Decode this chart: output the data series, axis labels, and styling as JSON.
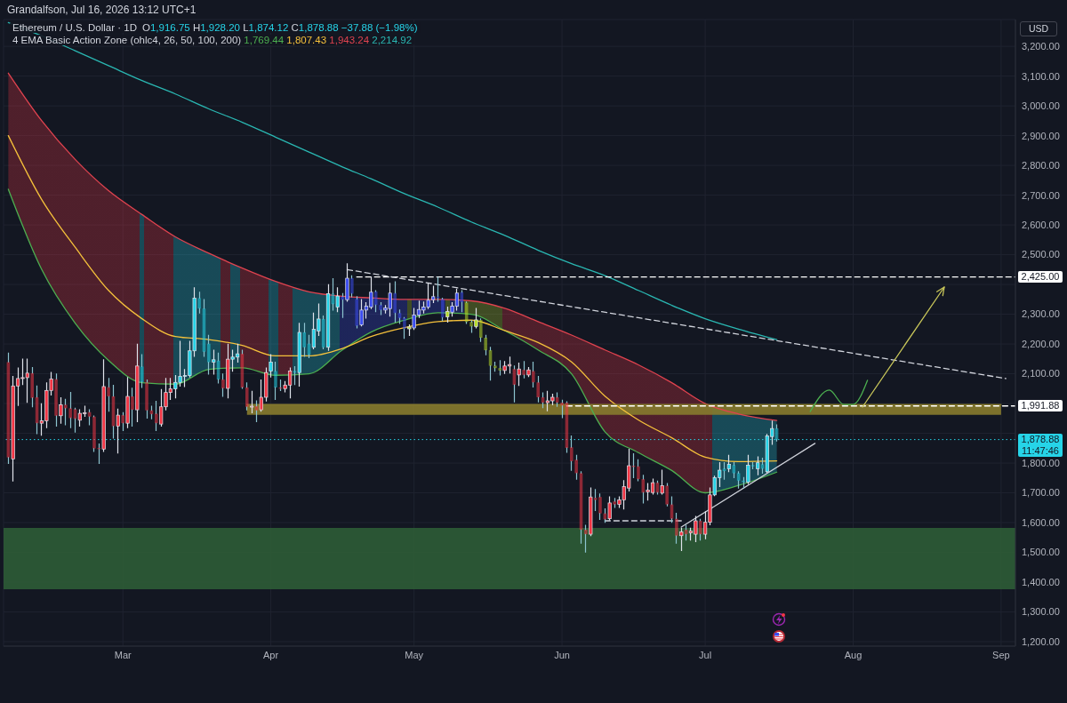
{
  "chart_data": {
    "type": "candlestick",
    "title": "Ethereum / U.S. Dollar · 1D",
    "subtitle": "Grandalfson, Jul 16, 2026 13:12 UTC+1",
    "ylabel": "USD",
    "x": [
      "2026-02-05",
      "2026-02-06",
      "2026-02-07",
      "2026-02-08",
      "2026-02-09",
      "2026-02-10",
      "2026-02-11",
      "2026-02-12",
      "2026-02-13",
      "2026-02-14",
      "2026-02-15",
      "2026-02-16",
      "2026-02-17",
      "2026-02-18",
      "2026-02-19",
      "2026-02-20",
      "2026-02-21",
      "2026-02-22",
      "2026-02-23",
      "2026-02-24",
      "2026-02-25",
      "2026-02-26",
      "2026-02-27",
      "2026-02-28",
      "2026-03-01",
      "2026-03-02",
      "2026-03-03",
      "2026-03-04",
      "2026-03-05",
      "2026-03-06",
      "2026-03-07",
      "2026-03-08",
      "2026-03-09",
      "2026-03-10",
      "2026-03-11",
      "2026-03-12",
      "2026-03-13",
      "2026-03-14",
      "2026-03-15",
      "2026-03-16",
      "2026-03-17",
      "2026-03-18",
      "2026-03-19",
      "2026-03-20",
      "2026-03-21",
      "2026-03-22",
      "2026-03-23",
      "2026-03-24",
      "2026-03-25",
      "2026-03-26",
      "2026-03-27",
      "2026-03-28",
      "2026-03-29",
      "2026-03-30",
      "2026-03-31",
      "2026-04-01",
      "2026-04-02",
      "2026-04-03",
      "2026-04-04",
      "2026-04-05",
      "2026-04-06",
      "2026-04-07",
      "2026-04-08",
      "2026-04-09",
      "2026-04-10",
      "2026-04-11",
      "2026-04-12",
      "2026-04-13",
      "2026-04-14",
      "2026-04-15",
      "2026-04-16",
      "2026-04-17",
      "2026-04-18",
      "2026-04-19",
      "2026-04-20",
      "2026-04-21",
      "2026-04-22",
      "2026-04-23",
      "2026-04-24",
      "2026-04-25",
      "2026-04-26",
      "2026-04-27",
      "2026-04-28",
      "2026-04-29",
      "2026-04-30",
      "2026-05-01",
      "2026-05-02",
      "2026-05-03",
      "2026-05-04",
      "2026-05-05",
      "2026-05-06",
      "2026-05-07",
      "2026-05-08",
      "2026-05-09",
      "2026-05-10",
      "2026-05-11",
      "2026-05-12",
      "2026-05-13",
      "2026-05-14",
      "2026-05-15",
      "2026-05-16",
      "2026-05-17",
      "2026-05-18",
      "2026-05-19",
      "2026-05-20",
      "2026-05-21",
      "2026-05-22",
      "2026-05-23",
      "2026-05-24",
      "2026-05-25",
      "2026-05-26",
      "2026-05-27",
      "2026-05-28",
      "2026-05-29",
      "2026-05-30",
      "2026-05-31",
      "2026-06-01",
      "2026-06-02",
      "2026-06-03",
      "2026-06-04",
      "2026-06-05",
      "2026-06-06",
      "2026-06-07",
      "2026-06-08",
      "2026-06-09",
      "2026-06-10",
      "2026-06-11",
      "2026-06-12",
      "2026-06-13",
      "2026-06-14",
      "2026-06-15",
      "2026-06-16",
      "2026-06-17",
      "2026-06-18",
      "2026-06-19",
      "2026-06-20",
      "2026-06-21",
      "2026-06-22",
      "2026-06-23",
      "2026-06-24",
      "2026-06-25",
      "2026-06-26",
      "2026-06-27",
      "2026-06-28",
      "2026-06-29",
      "2026-06-30",
      "2026-07-01",
      "2026-07-02",
      "2026-07-03",
      "2026-07-04",
      "2026-07-05",
      "2026-07-06",
      "2026-07-07",
      "2026-07-08",
      "2026-07-09",
      "2026-07-10",
      "2026-07-11",
      "2026-07-12",
      "2026-07-13",
      "2026-07-14",
      "2026-07-15",
      "2026-07-16"
    ],
    "ohlc": [
      [
        2139,
        2169,
        1799,
        1819
      ],
      [
        1814,
        2091,
        1740,
        2059
      ],
      [
        2059,
        2119,
        1994,
        2084
      ],
      [
        2084,
        2149,
        2064,
        2087
      ],
      [
        2087,
        2149,
        2004,
        2102
      ],
      [
        2102,
        2121,
        1989,
        2019
      ],
      [
        2021,
        2059,
        1899,
        1934
      ],
      [
        1934,
        1999,
        1894,
        1942
      ],
      [
        1942,
        2069,
        1919,
        2044
      ],
      [
        2044,
        2104,
        2029,
        2082
      ],
      [
        2082,
        2099,
        1924,
        1959
      ],
      [
        1959,
        2019,
        1934,
        1996
      ],
      [
        1996,
        2014,
        1929,
        1984
      ],
      [
        1984,
        2037,
        1919,
        1951
      ],
      [
        1981,
        1984,
        1904,
        1949
      ],
      [
        1944,
        1979,
        1924,
        1967
      ],
      [
        1966,
        1991,
        1957,
        1969
      ],
      [
        1971,
        1979,
        1929,
        1956
      ],
      [
        1956,
        1958,
        1839,
        1849
      ],
      [
        1851,
        1864,
        1799,
        1847
      ],
      [
        1847,
        2147,
        1839,
        2057
      ],
      [
        2055,
        2084,
        1974,
        2024
      ],
      [
        2024,
        2061,
        1884,
        1924
      ],
      [
        1924,
        1981,
        1834,
        1961
      ],
      [
        1961,
        1969,
        1909,
        1934
      ],
      [
        1934,
        2087,
        1919,
        2024
      ],
      [
        2024,
        2051,
        1924,
        1979
      ],
      [
        1979,
        2199,
        1939,
        2126
      ],
      [
        2124,
        2164,
        2054,
        2072
      ],
      [
        2071,
        2079,
        1951,
        1977
      ],
      [
        1977,
        1991,
        1949,
        1964
      ],
      [
        1966,
        2007,
        1909,
        1934
      ],
      [
        1931,
        2047,
        1924,
        1989
      ],
      [
        1989,
        2084,
        1979,
        2037
      ],
      [
        2037,
        2084,
        2014,
        2049
      ],
      [
        2049,
        2094,
        2019,
        2071
      ],
      [
        2071,
        2209,
        2059,
        2091
      ],
      [
        2091,
        2114,
        2057,
        2094
      ],
      [
        2094,
        2209,
        2089,
        2177
      ],
      [
        2177,
        2389,
        2159,
        2354
      ],
      [
        2354,
        2374,
        2304,
        2319
      ],
      [
        2319,
        2349,
        2159,
        2174
      ],
      [
        2201,
        2229,
        2099,
        2139
      ],
      [
        2139,
        2179,
        2099,
        2147
      ],
      [
        2144,
        2169,
        2069,
        2081
      ],
      [
        2081,
        2099,
        2024,
        2051
      ],
      [
        2051,
        2199,
        2019,
        2149
      ],
      [
        2149,
        2179,
        2109,
        2156
      ],
      [
        2156,
        2199,
        2139,
        2167
      ],
      [
        2167,
        2179,
        2051,
        2054
      ],
      [
        2054,
        2069,
        1979,
        1989
      ],
      [
        1989,
        2041,
        1969,
        1991
      ],
      [
        1991,
        2009,
        1939,
        1977
      ],
      [
        1979,
        2079,
        1974,
        2021
      ],
      [
        2021,
        2119,
        2009,
        2104
      ],
      [
        2109,
        2164,
        2089,
        2139
      ],
      [
        2109,
        2139,
        2014,
        2054
      ],
      [
        2054,
        2079,
        2044,
        2050
      ],
      [
        2050,
        2074,
        2039,
        2062
      ],
      [
        2062,
        2119,
        2019,
        2109
      ],
      [
        2109,
        2124,
        2064,
        2104
      ],
      [
        2104,
        2269,
        2059,
        2239
      ],
      [
        2239,
        2269,
        2159,
        2189
      ],
      [
        2201,
        2229,
        2154,
        2164
      ],
      [
        2189,
        2304,
        2184,
        2249
      ],
      [
        2244,
        2334,
        2229,
        2284
      ],
      [
        2284,
        2294,
        2184,
        2189
      ],
      [
        2189,
        2399,
        2179,
        2369
      ],
      [
        2369,
        2419,
        2314,
        2334
      ],
      [
        2324,
        2389,
        2309,
        2361
      ],
      [
        2359,
        2369,
        2289,
        2349
      ],
      [
        2349,
        2469,
        2344,
        2421
      ],
      [
        2421,
        2429,
        2359,
        2369
      ],
      [
        2351,
        2359,
        2254,
        2261
      ],
      [
        2264,
        2349,
        2261,
        2314
      ],
      [
        2314,
        2339,
        2287,
        2327
      ],
      [
        2324,
        2424,
        2319,
        2374
      ],
      [
        2376,
        2379,
        2309,
        2331
      ],
      [
        2331,
        2339,
        2299,
        2314
      ],
      [
        2314,
        2329,
        2304,
        2321
      ],
      [
        2319,
        2404,
        2294,
        2371
      ],
      [
        2371,
        2409,
        2274,
        2304
      ],
      [
        2304,
        2314,
        2269,
        2287
      ],
      [
        2287,
        2289,
        2219,
        2251
      ],
      [
        2251,
        2264,
        2229,
        2257
      ],
      [
        2254,
        2319,
        2249,
        2297
      ],
      [
        2297,
        2344,
        2289,
        2316
      ],
      [
        2314,
        2341,
        2304,
        2324
      ],
      [
        2324,
        2404,
        2319,
        2347
      ],
      [
        2349,
        2394,
        2339,
        2359
      ],
      [
        2359,
        2424,
        2344,
        2354
      ],
      [
        2351,
        2354,
        2279,
        2289
      ],
      [
        2291,
        2324,
        2274,
        2309
      ],
      [
        2307,
        2339,
        2294,
        2327
      ],
      [
        2327,
        2384,
        2314,
        2371
      ],
      [
        2374,
        2379,
        2309,
        2341
      ],
      [
        2339,
        2341,
        2269,
        2274
      ],
      [
        2274,
        2279,
        2239,
        2259
      ],
      [
        2259,
        2319,
        2254,
        2281
      ],
      [
        2281,
        2284,
        2209,
        2221
      ],
      [
        2221,
        2229,
        2164,
        2179
      ],
      [
        2179,
        2189,
        2079,
        2127
      ],
      [
        2127,
        2139,
        2109,
        2119
      ],
      [
        2119,
        2144,
        2096,
        2111
      ],
      [
        2111,
        2141,
        2101,
        2126
      ],
      [
        2126,
        2156,
        2103,
        2131
      ],
      [
        2116,
        2126,
        2006,
        2063
      ],
      [
        2096,
        2136,
        2061,
        2116
      ],
      [
        2113,
        2141,
        2086,
        2096
      ],
      [
        2096,
        2121,
        2091,
        2113
      ],
      [
        2109,
        2139,
        2056,
        2071
      ],
      [
        2071,
        2091,
        2006,
        2021
      ],
      [
        2021,
        2036,
        1986,
        2003
      ],
      [
        2003,
        2041,
        1976,
        2009
      ],
      [
        2009,
        2031,
        1996,
        2021
      ],
      [
        2021,
        2036,
        1991,
        2003
      ],
      [
        2003,
        2011,
        1953,
        1993
      ],
      [
        2003,
        2006,
        1836,
        1851
      ],
      [
        1853,
        1891,
        1776,
        1806
      ],
      [
        1811,
        1826,
        1746,
        1766
      ],
      [
        1766,
        1771,
        1531,
        1576
      ],
      [
        1576,
        1591,
        1501,
        1561
      ],
      [
        1561,
        1716,
        1556,
        1686
      ],
      [
        1683,
        1711,
        1641,
        1676
      ],
      [
        1686,
        1696,
        1611,
        1631
      ],
      [
        1631,
        1646,
        1601,
        1611
      ],
      [
        1613,
        1686,
        1609,
        1666
      ],
      [
        1671,
        1681,
        1651,
        1661
      ],
      [
        1661,
        1686,
        1651,
        1676
      ],
      [
        1676,
        1741,
        1646,
        1721
      ],
      [
        1716,
        1846,
        1706,
        1791
      ],
      [
        1791,
        1831,
        1751,
        1787
      ],
      [
        1789,
        1811,
        1741,
        1746
      ],
      [
        1746,
        1759,
        1666,
        1701
      ],
      [
        1703,
        1731,
        1676,
        1709
      ],
      [
        1701,
        1746,
        1696,
        1734
      ],
      [
        1734,
        1739,
        1696,
        1701
      ],
      [
        1699,
        1776,
        1696,
        1724
      ],
      [
        1724,
        1731,
        1656,
        1661
      ],
      [
        1661,
        1686,
        1601,
        1613
      ],
      [
        1613,
        1631,
        1531,
        1556
      ],
      [
        1556,
        1581,
        1506,
        1569
      ],
      [
        1576,
        1591,
        1541,
        1561
      ],
      [
        1566,
        1581,
        1541,
        1571
      ],
      [
        1561,
        1621,
        1536,
        1606
      ],
      [
        1606,
        1611,
        1541,
        1561
      ],
      [
        1561,
        1636,
        1546,
        1601
      ],
      [
        1601,
        1716,
        1593,
        1693
      ],
      [
        1693,
        1756,
        1691,
        1751
      ],
      [
        1751,
        1801,
        1721,
        1776
      ],
      [
        1781,
        1801,
        1746,
        1773
      ],
      [
        1781,
        1826,
        1771,
        1796
      ],
      [
        1793,
        1801,
        1751,
        1766
      ],
      [
        1766,
        1771,
        1716,
        1741
      ],
      [
        1741,
        1751,
        1716,
        1736
      ],
      [
        1736,
        1826,
        1731,
        1793
      ],
      [
        1793,
        1801,
        1781,
        1789
      ],
      [
        1781,
        1821,
        1761,
        1801
      ],
      [
        1796,
        1816,
        1766,
        1781
      ],
      [
        1771,
        1896,
        1769,
        1891
      ],
      [
        1889,
        1941,
        1863,
        1916
      ],
      [
        1916.75,
        1928.2,
        1874.12,
        1878.88
      ]
    ],
    "colors": [
      "#f23645",
      "#f23645",
      "#f23645",
      "#f23645",
      "#f23645",
      "#f23645",
      "#f23645",
      "#f23645",
      "#f23645",
      "#f23645",
      "#f23645",
      "#f23645",
      "#f23645",
      "#f23645",
      "#f23645",
      "#f23645",
      "#f23645",
      "#f23645",
      "#f23645",
      "#f23645",
      "#f23645",
      "#f23645",
      "#f23645",
      "#f23645",
      "#f23645",
      "#f23645",
      "#f23645",
      "#f23645",
      "#26d4e8",
      "#f23645",
      "#f23645",
      "#f23645",
      "#f23645",
      "#f23645",
      "#f23645",
      "#26d4e8",
      "#26d4e8",
      "#26d4e8",
      "#26d4e8",
      "#26d4e8",
      "#26d4e8",
      "#26d4e8",
      "#26d4e8",
      "#26d4e8",
      "#26d4e8",
      "#f23645",
      "#f23645",
      "#26d4e8",
      "#26d4e8",
      "#f23645",
      "#f23645",
      "#f23645",
      "#f23645",
      "#f23645",
      "#f23645",
      "#26d4e8",
      "#26d4e8",
      "#f23645",
      "#f23645",
      "#f23645",
      "#26d4e8",
      "#26d4e8",
      "#26d4e8",
      "#26d4e8",
      "#26d4e8",
      "#26d4e8",
      "#26d4e8",
      "#26d4e8",
      "#26d4e8",
      "#26d4e8",
      "#3b4cf0",
      "#3b4cf0",
      "#3b4cf0",
      "#3b4cf0",
      "#3b4cf0",
      "#3b4cf0",
      "#3b4cf0",
      "#3b4cf0",
      "#3b4cf0",
      "#3b4cf0",
      "#3b4cf0",
      "#3b4cf0",
      "#3b4cf0",
      "#3b4cf0",
      "#b8dc2a",
      "#3b4cf0",
      "#3b4cf0",
      "#3b4cf0",
      "#3b4cf0",
      "#3b4cf0",
      "#3b4cf0",
      "#3b4cf0",
      "#b8dc2a",
      "#3b4cf0",
      "#3b4cf0",
      "#3b4cf0",
      "#b8dc2a",
      "#b8dc2a",
      "#b8dc2a",
      "#b8dc2a",
      "#b8dc2a",
      "#b8dc2a",
      "#b8dc2a",
      "#b8dc2a",
      "#f23645",
      "#f23645",
      "#f23645",
      "#f23645",
      "#f23645",
      "#f23645",
      "#f23645",
      "#f23645",
      "#f23645",
      "#f23645",
      "#f23645",
      "#f23645",
      "#f23645",
      "#f23645",
      "#f23645",
      "#f23645",
      "#f23645",
      "#f23645",
      "#f23645",
      "#f23645",
      "#f23645",
      "#f23645",
      "#f23645",
      "#f23645",
      "#f23645",
      "#f23645",
      "#f23645",
      "#f23645",
      "#f23645",
      "#f23645",
      "#f23645",
      "#f23645",
      "#f23645",
      "#f23645",
      "#f23645",
      "#f23645",
      "#f23645",
      "#f23645",
      "#f23645",
      "#f23645",
      "#f23645",
      "#f23645",
      "#f23645",
      "#f23645",
      "#26d4e8",
      "#26d4e8",
      "#26d4e8",
      "#26d4e8",
      "#26d4e8",
      "#26d4e8",
      "#26d4e8",
      "#26d4e8",
      "#26d4e8",
      "#26d4e8",
      "#26d4e8",
      "#26d4e8",
      "#26d4e8",
      "#26d4e8"
    ],
    "series": [
      {
        "type": "line",
        "color": "#4caf50",
        "x": [
          "2026-02-05",
          "2026-02-12",
          "2026-02-19",
          "2026-02-26",
          "2026-03-05",
          "2026-03-12",
          "2026-03-19",
          "2026-03-26",
          "2026-04-02",
          "2026-04-09",
          "2026-04-16",
          "2026-04-22",
          "2026-04-29",
          "2026-05-06",
          "2026-05-13",
          "2026-05-20",
          "2026-05-27",
          "2026-06-03",
          "2026-06-10",
          "2026-06-17",
          "2026-06-24",
          "2026-07-01",
          "2026-07-08",
          "2026-07-16"
        ],
        "values": [
          2720,
          2450,
          2270,
          2145,
          2070,
          2065,
          2115,
          2120,
          2095,
          2100,
          2180,
          2240,
          2280,
          2305,
          2300,
          2245,
          2180,
          2100,
          1905,
          1835,
          1775,
          1700,
          1725,
          1769.44
        ]
      },
      {
        "type": "line",
        "color": "#f5c13b",
        "x": [
          "2026-02-05",
          "2026-02-12",
          "2026-02-19",
          "2026-02-26",
          "2026-03-05",
          "2026-03-12",
          "2026-03-19",
          "2026-03-26",
          "2026-04-02",
          "2026-04-09",
          "2026-04-16",
          "2026-04-22",
          "2026-04-29",
          "2026-05-06",
          "2026-05-13",
          "2026-05-20",
          "2026-05-27",
          "2026-06-03",
          "2026-06-10",
          "2026-06-17",
          "2026-06-24",
          "2026-07-01",
          "2026-07-08",
          "2026-07-16"
        ],
        "values": [
          2900,
          2685,
          2525,
          2380,
          2285,
          2225,
          2215,
          2195,
          2160,
          2160,
          2185,
          2225,
          2255,
          2275,
          2280,
          2245,
          2205,
          2140,
          2025,
          1945,
          1885,
          1820,
          1805,
          1807.43
        ]
      },
      {
        "type": "line",
        "color": "#e0434f",
        "x": [
          "2026-02-05",
          "2026-02-12",
          "2026-02-19",
          "2026-02-26",
          "2026-03-05",
          "2026-03-12",
          "2026-03-19",
          "2026-03-26",
          "2026-04-02",
          "2026-04-09",
          "2026-04-16",
          "2026-04-22",
          "2026-04-29",
          "2026-05-06",
          "2026-05-13",
          "2026-05-20",
          "2026-05-27",
          "2026-06-03",
          "2026-06-10",
          "2026-06-17",
          "2026-06-24",
          "2026-07-01",
          "2026-07-08",
          "2026-07-16"
        ],
        "values": [
          3110,
          2950,
          2820,
          2715,
          2635,
          2560,
          2505,
          2455,
          2410,
          2375,
          2360,
          2355,
          2350,
          2350,
          2345,
          2320,
          2275,
          2230,
          2180,
          2130,
          2070,
          2000,
          1965,
          1943.24
        ],
        "lower": [
          2720,
          2450,
          2270,
          2145,
          2070,
          2065,
          2115,
          2120,
          2095,
          2100,
          2180,
          2240,
          2280,
          2305,
          2300,
          2245,
          2180,
          2100,
          1905,
          1835,
          1775,
          1700,
          1725,
          1769.44
        ],
        "upper": [
          3110,
          2950,
          2820,
          2715,
          2635,
          2560,
          2505,
          2455,
          2410,
          2375,
          2360,
          2355,
          2350,
          2350,
          2345,
          2320,
          2275,
          2230,
          2180,
          2130,
          2070,
          2000,
          1965,
          1943.24
        ]
      },
      {
        "type": "line",
        "color": "#2ab7b2",
        "x": [
          "2026-02-05",
          "2026-02-12",
          "2026-02-19",
          "2026-02-26",
          "2026-03-05",
          "2026-03-12",
          "2026-03-19",
          "2026-03-26",
          "2026-04-02",
          "2026-04-09",
          "2026-04-16",
          "2026-04-22",
          "2026-04-29",
          "2026-05-06",
          "2026-05-13",
          "2026-05-20",
          "2026-05-27",
          "2026-06-03",
          "2026-06-10",
          "2026-06-17",
          "2026-06-24",
          "2026-07-01",
          "2026-07-08",
          "2026-07-16"
        ],
        "values": [
          3280,
          3235,
          3185,
          3135,
          3085,
          3040,
          2990,
          2945,
          2895,
          2845,
          2795,
          2755,
          2705,
          2660,
          2610,
          2565,
          2515,
          2470,
          2430,
          2380,
          2330,
          2285,
          2250,
          2214.92
        ]
      },
      {
        "type": "line",
        "color": "#857a2e",
        "x": [
          "2026-03-27",
          "2026-04-15",
          "2026-05-05",
          "2026-05-25",
          "2026-06-14",
          "2026-07-04",
          "2026-07-24",
          "2026-08-13",
          "2026-09-01"
        ],
        "values": [
          1997,
          1997,
          1997,
          1997,
          1997,
          1997,
          1997,
          1997,
          1997
        ],
        "lower": [
          1962,
          1962,
          1962,
          1962,
          1962,
          1962,
          1962,
          1962,
          1962
        ],
        "upper": [
          1997,
          1997,
          1997,
          1997,
          1997,
          1997,
          1997,
          1997,
          1997
        ]
      },
      {
        "type": "line",
        "name": "2,425.00",
        "color": "#ffffff",
        "line_style": "dashed",
        "x": [
          "2026-04-19",
          "2026-09-04"
        ],
        "values": [
          2425,
          2425
        ]
      },
      {
        "type": "line",
        "name": "1,991.88",
        "color": "#ffffff",
        "line_style": "dashed",
        "x": [
          "2026-06-02",
          "2026-09-04"
        ],
        "values": [
          1991.88,
          1991.88
        ]
      },
      {
        "type": "line",
        "color": "#d1d4dc",
        "line_style": "dashed",
        "x": [
          "2026-04-17",
          "2026-09-02"
        ],
        "values": [
          2450,
          2084
        ]
      },
      {
        "type": "line",
        "color": "#d1d4dc",
        "line_style": "dashed",
        "x": [
          "2026-06-10",
          "2026-06-26"
        ],
        "values": [
          1606,
          1606
        ]
      },
      {
        "type": "line",
        "color": "#d1d4dc",
        "x": [
          "2026-06-26",
          "2026-07-24"
        ],
        "values": [
          1585,
          1866
        ]
      },
      {
        "type": "line",
        "color": "#4caf50",
        "x": [
          "2026-07-23",
          "2026-07-27",
          "2026-07-30",
          "2026-08-01",
          "2026-08-04"
        ],
        "values": [
          1973,
          2045,
          1997,
          1997,
          2078
        ]
      }
    ],
    "xlim": [
      "2026-02-04",
      "2026-09-04"
    ],
    "xticks": [
      {
        "value": "2026-03-01",
        "label": "Mar"
      },
      {
        "value": "2026-04-01",
        "label": "Apr"
      },
      {
        "value": "2026-05-01",
        "label": "May"
      },
      {
        "value": "2026-06-01",
        "label": "Jun"
      },
      {
        "value": "2026-07-01",
        "label": "Jul"
      },
      {
        "value": "2026-08-01",
        "label": "Aug"
      },
      {
        "value": "2026-09-01",
        "label": "Sep"
      }
    ],
    "ylim": [
      1185,
      3290
    ],
    "yticks": [
      {
        "value": 1200,
        "label": "1,200.00"
      },
      {
        "value": 1300,
        "label": "1,300.00"
      },
      {
        "value": 1400,
        "label": "1,400.00"
      },
      {
        "value": 1500,
        "label": "1,500.00"
      },
      {
        "value": 1600,
        "label": "1,600.00"
      },
      {
        "value": 1700,
        "label": "1,700.00"
      },
      {
        "value": 1800,
        "label": "1,800.00"
      },
      {
        "value": 1900,
        "label": null
      },
      {
        "value": 2000,
        "label": null
      },
      {
        "value": 2100,
        "label": "2,100.00"
      },
      {
        "value": 2200,
        "label": "2,200.00"
      },
      {
        "value": 2300,
        "label": "2,300.00"
      },
      {
        "value": 2400,
        "label": null
      },
      {
        "value": 2500,
        "label": "2,500.00"
      },
      {
        "value": 2600,
        "label": "2,600.00"
      },
      {
        "value": 2700,
        "label": "2,700.00"
      },
      {
        "value": 2800,
        "label": "2,800.00"
      },
      {
        "value": 2900,
        "label": "2,900.00"
      },
      {
        "value": 3000,
        "label": "3,000.00"
      },
      {
        "value": 3100,
        "label": "3,100.00"
      },
      {
        "value": 3200,
        "label": "3,200.00"
      }
    ],
    "ref_lines": [
      {
        "axis": "y",
        "value": 1878.88,
        "label": "1,878.88",
        "color": "#26d4e8",
        "line_style": "dotted"
      }
    ],
    "bands": [
      {
        "axis": "y",
        "from": 1376,
        "to": 1582,
        "color": "#2d5c36"
      }
    ],
    "annotations": [
      "O1,916.75 H1,928.20 L1,874.12 C1,878.88 −37.88 (−1.98%)",
      "4 EMA Basic Action Zone (ohlc4, 26, 50, 100, 200) 1,769.44 1,807.43 1,943.24 2,214.92",
      "11:47:46"
    ],
    "grid": true
  }
}
